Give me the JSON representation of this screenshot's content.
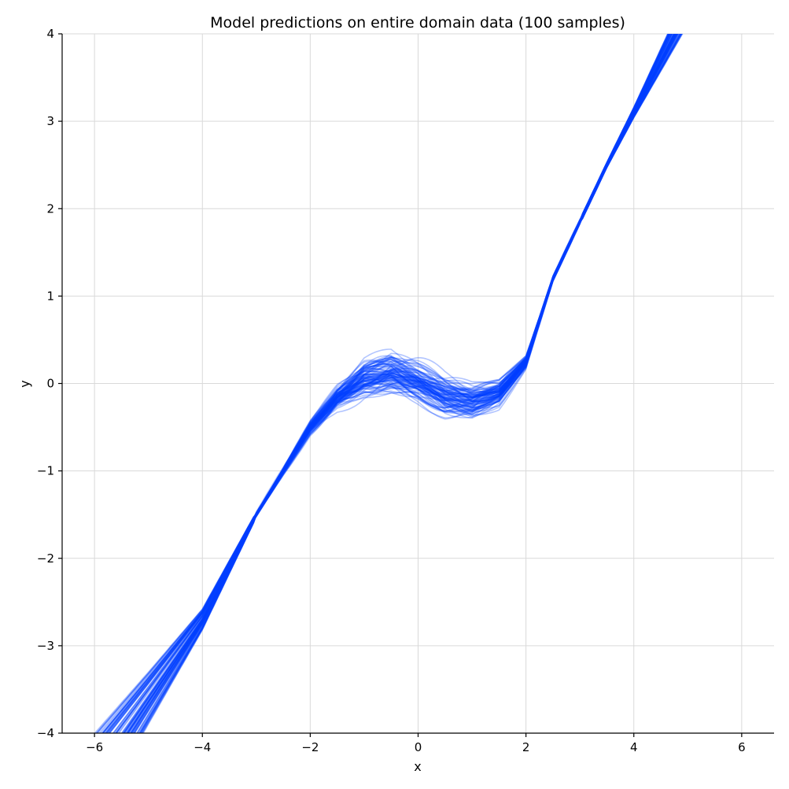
{
  "chart_data": {
    "type": "line",
    "title": "Model predictions on entire domain data (100 samples)",
    "xlabel": "x",
    "ylabel": "y",
    "xlim": [
      -6.6,
      6.6
    ],
    "ylim": [
      -4,
      4
    ],
    "xticks": [
      -6,
      -4,
      -2,
      0,
      2,
      4,
      6
    ],
    "yticks": [
      -4,
      -3,
      -2,
      -1,
      0,
      1,
      2,
      3,
      4
    ],
    "xtick_labels": [
      "−6",
      "−4",
      "−2",
      "0",
      "2",
      "4",
      "6"
    ],
    "ytick_labels": [
      "−4",
      "−3",
      "−2",
      "−1",
      "0",
      "1",
      "2",
      "3",
      "4"
    ],
    "grid": true,
    "line_color": "#0040ff",
    "line_opacity": 0.3,
    "sample_count": 100,
    "x": [
      -6.0,
      -5.0,
      -4.0,
      -3.0,
      -2.5,
      -2.0,
      -1.5,
      -1.0,
      -0.5,
      0.0,
      0.5,
      1.0,
      1.5,
      2.0,
      2.5,
      3.0,
      3.5,
      4.0,
      5.0,
      6.0
    ],
    "mean_curve": [
      -4.5,
      -3.6,
      -2.7,
      -1.5,
      -1.0,
      -0.5,
      -0.15,
      0.05,
      0.1,
      0.0,
      -0.15,
      -0.2,
      -0.1,
      0.25,
      1.2,
      1.85,
      2.5,
      3.1,
      4.3,
      5.5
    ],
    "spread_curve": [
      0.5,
      0.3,
      0.12,
      0.03,
      0.05,
      0.1,
      0.2,
      0.3,
      0.35,
      0.3,
      0.28,
      0.25,
      0.2,
      0.12,
      0.05,
      0.03,
      0.03,
      0.06,
      0.2,
      0.4
    ]
  }
}
